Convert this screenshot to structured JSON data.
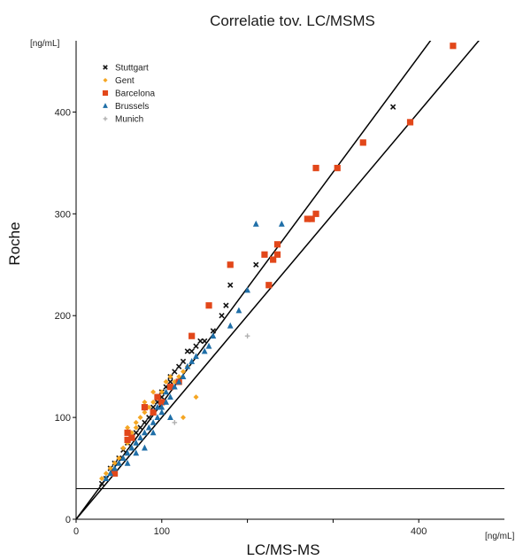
{
  "chart_data": {
    "type": "scatter",
    "title": "Correlatie  tov. LC/MSMS",
    "xlabel": "LC/MS-MS",
    "ylabel": "Roche",
    "x_unit": "[ng/mL]",
    "y_unit": "[ng/mL]",
    "xlim": [
      0,
      500
    ],
    "ylim": [
      0,
      470
    ],
    "x_ticks": [
      0,
      100,
      200,
      300,
      400
    ],
    "x_tick_labels": [
      "0",
      "100",
      "",
      "",
      "400"
    ],
    "y_ticks": [
      0,
      100,
      200,
      300,
      400
    ],
    "y_tick_labels": [
      "0",
      "100",
      "200",
      "300",
      "400"
    ],
    "legend_position": "top-left",
    "reference_lines": [
      {
        "kind": "fit",
        "x": [
          0,
          440
        ],
        "y": [
          0,
          500
        ]
      },
      {
        "kind": "identity",
        "x": [
          0,
          500
        ],
        "y": [
          0,
          500
        ]
      },
      {
        "kind": "cutoff",
        "x": [
          0,
          500
        ],
        "y": [
          30,
          30
        ]
      }
    ],
    "series": [
      {
        "name": "Stuttgart",
        "marker": "x",
        "color": "#111111",
        "points": [
          [
            30,
            35
          ],
          [
            35,
            40
          ],
          [
            40,
            50
          ],
          [
            45,
            55
          ],
          [
            50,
            60
          ],
          [
            55,
            68
          ],
          [
            60,
            75
          ],
          [
            65,
            80
          ],
          [
            70,
            85
          ],
          [
            75,
            90
          ],
          [
            80,
            95
          ],
          [
            85,
            100
          ],
          [
            90,
            110
          ],
          [
            95,
            115
          ],
          [
            100,
            125
          ],
          [
            105,
            130
          ],
          [
            110,
            140
          ],
          [
            115,
            145
          ],
          [
            120,
            150
          ],
          [
            125,
            155
          ],
          [
            130,
            165
          ],
          [
            135,
            165
          ],
          [
            140,
            170
          ],
          [
            145,
            175
          ],
          [
            150,
            175
          ],
          [
            160,
            185
          ],
          [
            170,
            200
          ],
          [
            175,
            210
          ],
          [
            180,
            230
          ],
          [
            210,
            250
          ],
          [
            370,
            405
          ],
          [
            100,
            120
          ],
          [
            110,
            135
          ],
          [
            95,
            120
          ],
          [
            120,
            135
          ]
        ]
      },
      {
        "name": "Gent",
        "marker": "diamond",
        "color": "#f5a623",
        "points": [
          [
            30,
            40
          ],
          [
            35,
            45
          ],
          [
            40,
            50
          ],
          [
            45,
            55
          ],
          [
            50,
            60
          ],
          [
            55,
            70
          ],
          [
            60,
            75
          ],
          [
            65,
            85
          ],
          [
            70,
            90
          ],
          [
            75,
            100
          ],
          [
            80,
            105
          ],
          [
            85,
            110
          ],
          [
            90,
            115
          ],
          [
            95,
            120
          ],
          [
            100,
            125
          ],
          [
            105,
            135
          ],
          [
            110,
            140
          ],
          [
            115,
            135
          ],
          [
            120,
            140
          ],
          [
            125,
            145
          ],
          [
            130,
            150
          ],
          [
            140,
            120
          ],
          [
            125,
            100
          ],
          [
            60,
            90
          ],
          [
            70,
            95
          ],
          [
            80,
            115
          ],
          [
            90,
            125
          ]
        ]
      },
      {
        "name": "Barcelona",
        "marker": "square",
        "color": "#e2471a",
        "points": [
          [
            45,
            45
          ],
          [
            60,
            85
          ],
          [
            65,
            80
          ],
          [
            80,
            110
          ],
          [
            90,
            105
          ],
          [
            100,
            115
          ],
          [
            110,
            130
          ],
          [
            120,
            135
          ],
          [
            135,
            180
          ],
          [
            155,
            210
          ],
          [
            180,
            250
          ],
          [
            220,
            260
          ],
          [
            225,
            230
          ],
          [
            230,
            255
          ],
          [
            235,
            260
          ],
          [
            235,
            270
          ],
          [
            270,
            295
          ],
          [
            275,
            295
          ],
          [
            280,
            300
          ],
          [
            280,
            345
          ],
          [
            305,
            345
          ],
          [
            335,
            370
          ],
          [
            390,
            390
          ],
          [
            440,
            465
          ],
          [
            60,
            78
          ],
          [
            95,
            120
          ]
        ]
      },
      {
        "name": "Brussels",
        "marker": "triangle",
        "color": "#1f6fa8",
        "points": [
          [
            35,
            40
          ],
          [
            40,
            45
          ],
          [
            45,
            50
          ],
          [
            50,
            55
          ],
          [
            55,
            60
          ],
          [
            60,
            65
          ],
          [
            65,
            70
          ],
          [
            70,
            75
          ],
          [
            75,
            80
          ],
          [
            80,
            85
          ],
          [
            85,
            90
          ],
          [
            90,
            95
          ],
          [
            95,
            100
          ],
          [
            100,
            110
          ],
          [
            100,
            105
          ],
          [
            105,
            115
          ],
          [
            110,
            120
          ],
          [
            115,
            130
          ],
          [
            120,
            135
          ],
          [
            125,
            140
          ],
          [
            130,
            150
          ],
          [
            135,
            155
          ],
          [
            140,
            160
          ],
          [
            150,
            165
          ],
          [
            155,
            170
          ],
          [
            160,
            180
          ],
          [
            180,
            190
          ],
          [
            190,
            205
          ],
          [
            200,
            225
          ],
          [
            210,
            290
          ],
          [
            240,
            290
          ],
          [
            60,
            55
          ],
          [
            70,
            65
          ],
          [
            80,
            70
          ],
          [
            95,
            110
          ],
          [
            105,
            125
          ],
          [
            90,
            85
          ],
          [
            110,
            100
          ]
        ]
      },
      {
        "name": "Munich",
        "marker": "plus",
        "color": "#b0b0b0",
        "points": [
          [
            200,
            180
          ],
          [
            115,
            95
          ]
        ]
      }
    ]
  }
}
